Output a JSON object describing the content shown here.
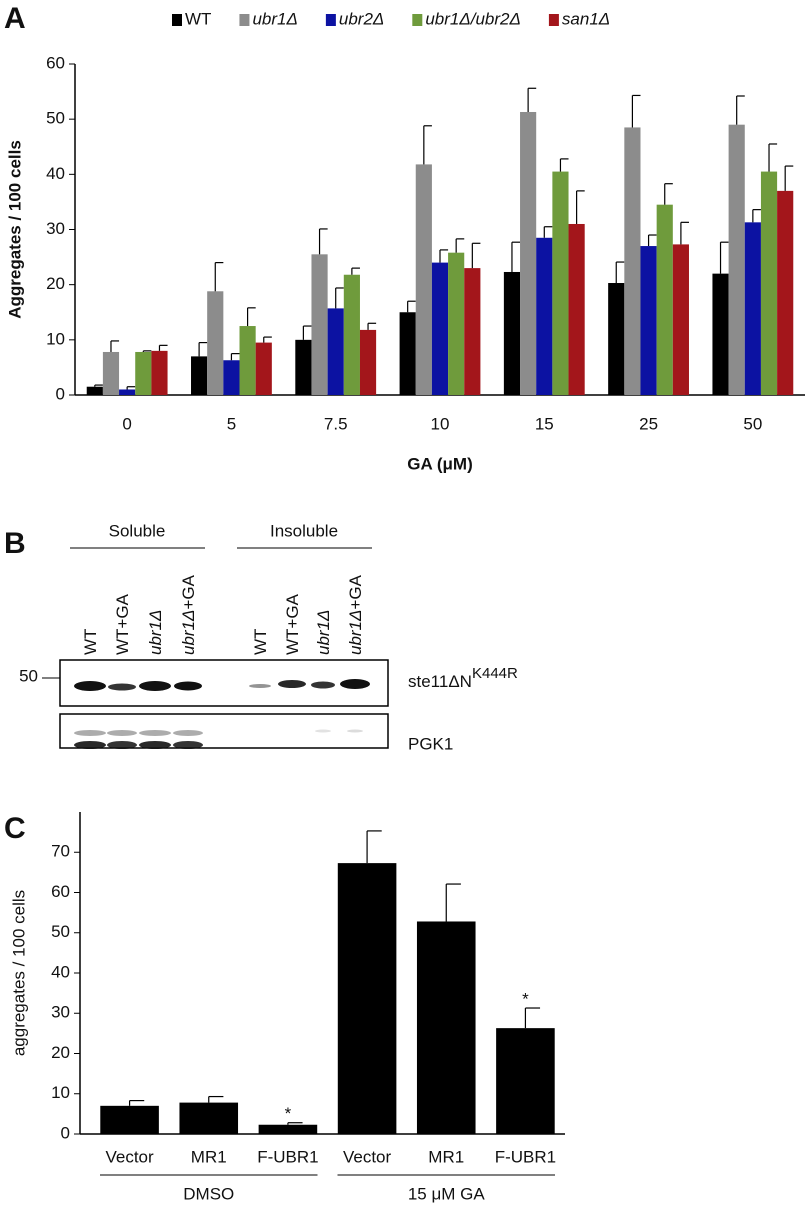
{
  "panel_labels": [
    "A",
    "B",
    "C"
  ],
  "chart_data": [
    {
      "type": "bar",
      "ylabel": "Aggregates / 100 cells",
      "xlabel": "GA (μM)",
      "categories": [
        "0",
        "5",
        "7.5",
        "10",
        "15",
        "25",
        "50"
      ],
      "ylim": [
        0,
        60
      ],
      "yticks": [
        0,
        10,
        20,
        30,
        40,
        50,
        60
      ],
      "grid": false,
      "legend": "top",
      "series": [
        {
          "name": "WT",
          "color": "#000000",
          "italic": false,
          "values": [
            1.5,
            7,
            10,
            15,
            22.3,
            20.3,
            22
          ],
          "errors": [
            0.3,
            2.5,
            2.5,
            2,
            5.4,
            3.8,
            5.7
          ]
        },
        {
          "name": "ubr1Δ",
          "color": "#8c8c8c",
          "italic": true,
          "values": [
            7.8,
            18.8,
            25.5,
            41.8,
            51.3,
            48.5,
            49
          ],
          "errors": [
            2,
            5.2,
            4.6,
            7,
            4.3,
            5.8,
            5.2
          ]
        },
        {
          "name": "ubr2Δ",
          "color": "#0c12a2",
          "italic": true,
          "values": [
            1,
            6.3,
            15.7,
            24,
            28.5,
            27,
            31.3
          ],
          "errors": [
            0.5,
            1.2,
            3.7,
            2.3,
            2,
            2,
            2.3
          ]
        },
        {
          "name": "ubr1Δ/ubr2Δ",
          "color": "#6f9b3c",
          "italic": true,
          "values": [
            7.8,
            12.5,
            21.8,
            25.8,
            40.5,
            34.5,
            40.5
          ],
          "errors": [
            0.2,
            3.3,
            1.2,
            2.5,
            2.3,
            3.8,
            5
          ]
        },
        {
          "name": "san1Δ",
          "color": "#a3161b",
          "italic": true,
          "values": [
            8,
            9.5,
            11.8,
            23,
            31,
            27.3,
            37
          ],
          "errors": [
            1,
            1,
            1.2,
            4.5,
            6,
            4,
            4.5
          ]
        }
      ]
    },
    {
      "type": "bar",
      "ylabel": "aggregates / 100 cells",
      "categories": [
        "Vector",
        "MR1",
        "F-UBR1",
        "Vector",
        "MR1",
        "F-UBR1"
      ],
      "groups": [
        "DMSO",
        "15 μM GA"
      ],
      "ylim": [
        0,
        80
      ],
      "yticks": [
        0,
        10,
        20,
        30,
        40,
        50,
        60,
        70
      ],
      "grid": false,
      "color": "#000000",
      "values": [
        7,
        7.8,
        2.3,
        67.3,
        52.8,
        26.3
      ],
      "errors": [
        1.3,
        1.5,
        0.5,
        8,
        9.3,
        5
      ],
      "significance": [
        null,
        null,
        "*",
        null,
        null,
        "*"
      ]
    }
  ],
  "blot": {
    "fractions": [
      "Soluble",
      "Insoluble"
    ],
    "lanes": [
      {
        "strain": "WT"
      },
      {
        "strain": "WT",
        "treatment": "+GA"
      },
      {
        "strain": "ubr1Δ"
      },
      {
        "strain": "ubr1Δ",
        "treatment": "+GA"
      },
      {
        "strain": "WT"
      },
      {
        "strain": "WT",
        "treatment": "+GA"
      },
      {
        "strain": "ubr1Δ"
      },
      {
        "strain": "ubr1Δ",
        "treatment": "+GA"
      }
    ],
    "marker": "50",
    "bands": [
      {
        "label": "ste11ΔN",
        "superscript": "K444R"
      },
      {
        "label": "PGK1"
      }
    ]
  }
}
